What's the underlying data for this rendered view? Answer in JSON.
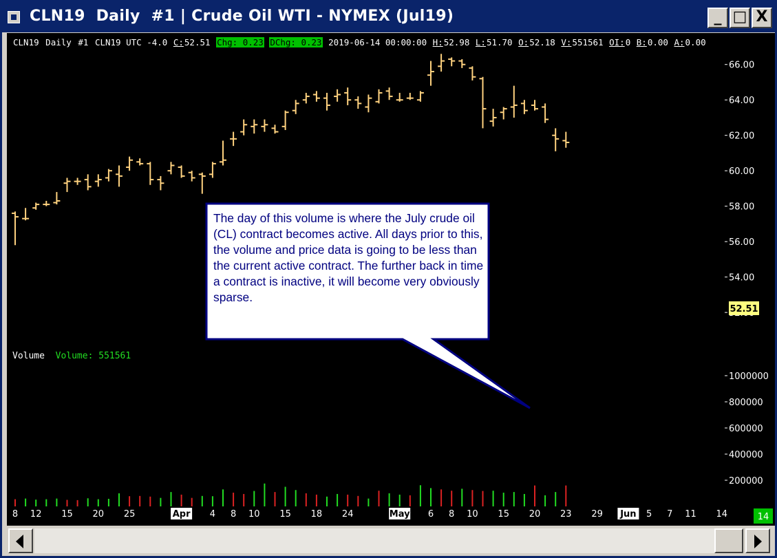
{
  "window": {
    "title": "CLN19  Daily  #1 | Crude Oil WTI - NYMEX (Jul19)",
    "buttons": {
      "minimize": "_",
      "maximize": "□",
      "close": "X"
    }
  },
  "infobar": {
    "symbol": "CLN19",
    "interval": "Daily",
    "chart_num": "#1",
    "tz": "CLN19 UTC -4.0",
    "close_label": "C:",
    "close": "52.51",
    "chg": "Chg: 0.23",
    "dchg": "DChg: 0.23",
    "datetime": "2019-06-14 00:00:00",
    "high_label": "H:",
    "high": "52.98",
    "low_label": "L:",
    "low": "51.70",
    "open_label": "O:",
    "open": "52.18",
    "vol_label": "V:",
    "vol": "551561",
    "oi_label": "OI:",
    "oi": "0",
    "bid_label": "B:",
    "bid": "0.00",
    "ask_label": "A:",
    "ask": "0.00"
  },
  "volume_panel": {
    "title": "Volume",
    "value_text": "Volume: 551561"
  },
  "last_price_badge": "52.51",
  "callout": "The day of this volume is where the July crude oil (CL) contract becomes active. All days prior to this, the volume and price data is going to be less than the current active contract. The further back in time a contract is inactive, it will become very obviously sparse.",
  "scroll_counter": "14",
  "colors": {
    "price_bar": "#ffd27f",
    "volume_up": "#22dd22",
    "volume_down": "#dd2222",
    "highlight": "#00c000",
    "badge": "#ffff80",
    "callout_text": "#000080",
    "title_bar": "#0a246a"
  },
  "icons": {
    "window_icon": "chart-window-icon",
    "scroll_left": "chevron-left-icon",
    "scroll_right": "chevron-right-icon"
  },
  "chart_data": {
    "type": "ohlc",
    "price_axis": {
      "ticks": [
        "52.00",
        "54.00",
        "56.00",
        "58.00",
        "60.00",
        "62.00",
        "64.00",
        "66.00"
      ],
      "ylim": [
        50.8,
        67.0
      ]
    },
    "volume_axis": {
      "ticks": [
        "200000",
        "400000",
        "600000",
        "800000",
        "1000000"
      ],
      "ylim": [
        0,
        1200000
      ]
    },
    "x_labels": [
      {
        "label": "8",
        "i": 0
      },
      {
        "label": "12",
        "i": 2
      },
      {
        "label": "15",
        "i": 5
      },
      {
        "label": "20",
        "i": 8
      },
      {
        "label": "25",
        "i": 11
      },
      {
        "label": "Apr",
        "i": 16,
        "month": true
      },
      {
        "label": "4",
        "i": 19
      },
      {
        "label": "8",
        "i": 21
      },
      {
        "label": "10",
        "i": 23
      },
      {
        "label": "15",
        "i": 26
      },
      {
        "label": "18",
        "i": 29
      },
      {
        "label": "24",
        "i": 32
      },
      {
        "label": "May",
        "i": 37,
        "month": true
      },
      {
        "label": "6",
        "i": 40
      },
      {
        "label": "8",
        "i": 42
      },
      {
        "label": "10",
        "i": 44
      },
      {
        "label": "15",
        "i": 47
      },
      {
        "label": "20",
        "i": 50
      },
      {
        "label": "23",
        "i": 53
      },
      {
        "label": "29",
        "i": 56
      },
      {
        "label": "Jun",
        "i": 59,
        "month": true
      },
      {
        "label": "5",
        "i": 61
      },
      {
        "label": "7",
        "i": 63
      },
      {
        "label": "11",
        "i": 65
      },
      {
        "label": "14",
        "i": 68
      }
    ],
    "bars": [
      {
        "o": 57.6,
        "h": 57.7,
        "l": 55.8,
        "c": 57.4,
        "v": 55000,
        "up": false
      },
      {
        "o": 57.3,
        "h": 57.9,
        "l": 57.2,
        "c": 57.3,
        "v": 60000,
        "up": true
      },
      {
        "o": 57.9,
        "h": 58.2,
        "l": 57.8,
        "c": 58.1,
        "v": 52000,
        "up": true
      },
      {
        "o": 58.1,
        "h": 58.3,
        "l": 58.0,
        "c": 58.1,
        "v": 55000,
        "up": true
      },
      {
        "o": 58.2,
        "h": 58.8,
        "l": 58.1,
        "c": 58.3,
        "v": 60000,
        "up": true
      },
      {
        "o": 59.3,
        "h": 59.6,
        "l": 58.8,
        "c": 59.4,
        "v": 50000,
        "up": false
      },
      {
        "o": 59.4,
        "h": 59.6,
        "l": 59.2,
        "c": 59.4,
        "v": 48000,
        "up": false
      },
      {
        "o": 59.5,
        "h": 59.8,
        "l": 58.9,
        "c": 59.1,
        "v": 62000,
        "up": true
      },
      {
        "o": 59.4,
        "h": 59.8,
        "l": 59.1,
        "c": 59.5,
        "v": 55000,
        "up": true
      },
      {
        "o": 59.6,
        "h": 60.1,
        "l": 59.4,
        "c": 60.0,
        "v": 58000,
        "up": true
      },
      {
        "o": 59.8,
        "h": 60.3,
        "l": 59.1,
        "c": 59.7,
        "v": 100000,
        "up": true
      },
      {
        "o": 60.2,
        "h": 60.8,
        "l": 60.0,
        "c": 60.6,
        "v": 78000,
        "up": false
      },
      {
        "o": 60.5,
        "h": 60.7,
        "l": 60.3,
        "c": 60.4,
        "v": 80000,
        "up": false
      },
      {
        "o": 60.4,
        "h": 60.5,
        "l": 59.2,
        "c": 59.5,
        "v": 75000,
        "up": false
      },
      {
        "o": 59.5,
        "h": 59.7,
        "l": 58.9,
        "c": 59.3,
        "v": 65000,
        "up": true
      },
      {
        "o": 60.0,
        "h": 60.5,
        "l": 59.8,
        "c": 60.3,
        "v": 110000,
        "up": true
      },
      {
        "o": 60.2,
        "h": 60.3,
        "l": 59.6,
        "c": 59.7,
        "v": 90000,
        "up": false
      },
      {
        "o": 59.9,
        "h": 60.0,
        "l": 59.4,
        "c": 59.6,
        "v": 65000,
        "up": false
      },
      {
        "o": 59.8,
        "h": 59.9,
        "l": 58.7,
        "c": 59.7,
        "v": 80000,
        "up": true
      },
      {
        "o": 59.8,
        "h": 60.5,
        "l": 59.6,
        "c": 60.4,
        "v": 78000,
        "up": true
      },
      {
        "o": 60.5,
        "h": 61.7,
        "l": 60.3,
        "c": 60.6,
        "v": 130000,
        "up": true
      },
      {
        "o": 61.8,
        "h": 62.2,
        "l": 61.4,
        "c": 61.8,
        "v": 105000,
        "up": false
      },
      {
        "o": 62.2,
        "h": 62.9,
        "l": 62.0,
        "c": 62.6,
        "v": 95000,
        "up": false
      },
      {
        "o": 62.5,
        "h": 62.9,
        "l": 62.1,
        "c": 62.6,
        "v": 118000,
        "up": true
      },
      {
        "o": 62.5,
        "h": 62.9,
        "l": 62.2,
        "c": 62.6,
        "v": 175000,
        "up": true
      },
      {
        "o": 62.4,
        "h": 62.6,
        "l": 62.1,
        "c": 62.2,
        "v": 110000,
        "up": false
      },
      {
        "o": 62.5,
        "h": 63.4,
        "l": 62.3,
        "c": 63.3,
        "v": 150000,
        "up": true
      },
      {
        "o": 63.4,
        "h": 64.0,
        "l": 63.2,
        "c": 63.8,
        "v": 125000,
        "up": true
      },
      {
        "o": 64.0,
        "h": 64.4,
        "l": 63.8,
        "c": 64.2,
        "v": 100000,
        "up": false
      },
      {
        "o": 64.3,
        "h": 64.5,
        "l": 63.9,
        "c": 64.1,
        "v": 90000,
        "up": false
      },
      {
        "o": 64.1,
        "h": 64.4,
        "l": 63.4,
        "c": 63.7,
        "v": 75000,
        "up": true
      },
      {
        "o": 64.2,
        "h": 64.6,
        "l": 63.9,
        "c": 64.3,
        "v": 95000,
        "up": true
      },
      {
        "o": 64.4,
        "h": 64.7,
        "l": 63.7,
        "c": 64.0,
        "v": 90000,
        "up": false
      },
      {
        "o": 64.0,
        "h": 64.2,
        "l": 63.5,
        "c": 63.8,
        "v": 80000,
        "up": false
      },
      {
        "o": 63.6,
        "h": 64.3,
        "l": 63.3,
        "c": 64.1,
        "v": 60000,
        "up": true
      },
      {
        "o": 63.9,
        "h": 64.6,
        "l": 63.8,
        "c": 64.4,
        "v": 120000,
        "up": false
      },
      {
        "o": 64.5,
        "h": 64.7,
        "l": 64.0,
        "c": 64.2,
        "v": 100000,
        "up": true
      },
      {
        "o": 64.0,
        "h": 64.4,
        "l": 63.9,
        "c": 64.0,
        "v": 90000,
        "up": true
      },
      {
        "o": 64.1,
        "h": 64.4,
        "l": 64.0,
        "c": 64.1,
        "v": 85000,
        "up": false
      },
      {
        "o": 64.0,
        "h": 64.5,
        "l": 63.9,
        "c": 64.4,
        "v": 162000,
        "up": true
      },
      {
        "o": 65.4,
        "h": 66.2,
        "l": 64.8,
        "c": 65.6,
        "v": 140000,
        "up": true
      },
      {
        "o": 65.9,
        "h": 66.6,
        "l": 65.6,
        "c": 66.2,
        "v": 130000,
        "up": false
      },
      {
        "o": 66.3,
        "h": 66.4,
        "l": 65.9,
        "c": 66.2,
        "v": 120000,
        "up": false
      },
      {
        "o": 66.2,
        "h": 66.3,
        "l": 65.8,
        "c": 66.0,
        "v": 135000,
        "up": true
      },
      {
        "o": 65.8,
        "h": 65.9,
        "l": 65.1,
        "c": 65.3,
        "v": 125000,
        "up": false
      },
      {
        "o": 65.2,
        "h": 65.3,
        "l": 62.4,
        "c": 63.5,
        "v": 118000,
        "up": false
      },
      {
        "o": 62.8,
        "h": 63.5,
        "l": 62.5,
        "c": 63.0,
        "v": 120000,
        "up": true
      },
      {
        "o": 63.3,
        "h": 63.6,
        "l": 62.9,
        "c": 63.5,
        "v": 105000,
        "up": true
      },
      {
        "o": 63.6,
        "h": 64.8,
        "l": 63.0,
        "c": 63.7,
        "v": 110000,
        "up": true
      },
      {
        "o": 63.8,
        "h": 64.0,
        "l": 63.2,
        "c": 63.4,
        "v": 95000,
        "up": true
      },
      {
        "o": 63.7,
        "h": 64.0,
        "l": 63.4,
        "c": 63.5,
        "v": 160000,
        "up": false
      },
      {
        "o": 63.6,
        "h": 63.8,
        "l": 62.7,
        "c": 62.9,
        "v": 85000,
        "up": true
      },
      {
        "o": 62.0,
        "h": 62.4,
        "l": 61.1,
        "c": 61.8,
        "v": 110000,
        "up": true
      },
      {
        "o": 61.7,
        "h": 62.2,
        "l": 61.3,
        "c": 61.6,
        "v": 160000,
        "up": false
      }
    ]
  }
}
